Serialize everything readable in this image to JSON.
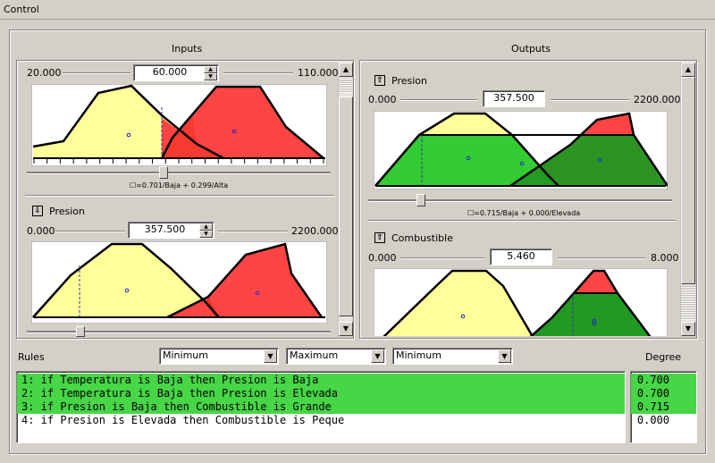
{
  "window": {
    "title": "Control"
  },
  "inputs": {
    "title": "Inputs",
    "var1": {
      "min": "20.000",
      "max": "110.000",
      "value": "60.000",
      "caption": "☐=0.701/Baja + 0.299/Alta",
      "slider_fraction": 0.444
    },
    "var2": {
      "name": "Presion",
      "min": "0.000",
      "max": "2200.000",
      "value": "357.500",
      "slider_fraction": 0.1625
    }
  },
  "outputs": {
    "title": "Outputs",
    "var1": {
      "name": "Presion",
      "min": "0.000",
      "max": "2200.000",
      "value": "357.500",
      "caption": "☐=0.715/Baja + 0.000/Elevada",
      "slider_fraction": 0.1625
    },
    "var2": {
      "name": "Combustible",
      "min": "0.000",
      "max": "8.000",
      "value": "5.460"
    }
  },
  "rules": {
    "label": "Rules",
    "and_method": "Minimum",
    "or_method": "Maximum",
    "implication_method": "Minimum",
    "items": [
      {
        "text": "1: if Temperatura is Baja then Presion is Baja",
        "active": true
      },
      {
        "text": "2: if Temperatura is Baja then Presion is Elevada",
        "active": true
      },
      {
        "text": "3: if Presion is Baja then Combustible is Grande",
        "active": true
      },
      {
        "text": "4: if Presion is Elevada then Combustible is Peque",
        "active": false
      }
    ]
  },
  "degree": {
    "label": "Degree",
    "values": [
      "0.700",
      "0.700",
      "0.715",
      "0.000"
    ]
  },
  "colors": {
    "yellow": "#ffff99",
    "red": "#ff3333",
    "green": "#33cc33",
    "darkgreen": "#229922",
    "active_row": "#46d646"
  }
}
